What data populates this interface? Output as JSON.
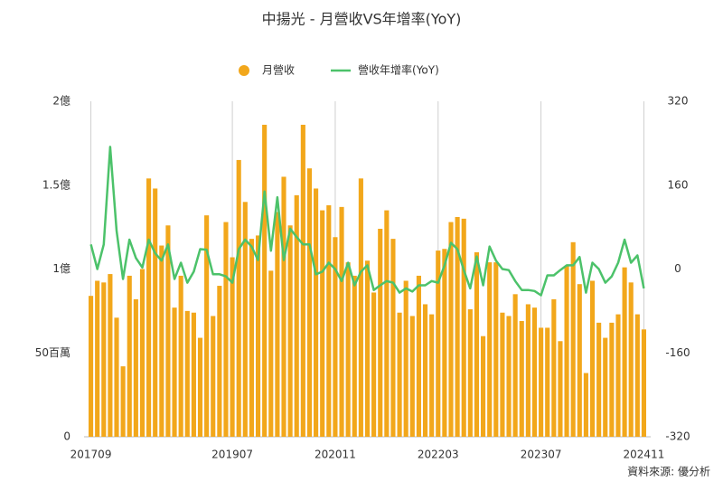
{
  "chart_data": {
    "type": "bar",
    "title": "中揚光 - 月營收VS年增率(YoY)",
    "source": "資料來源: 優分析",
    "categories": [
      "201709",
      null,
      null,
      null,
      null,
      null,
      null,
      null,
      null,
      null,
      null,
      null,
      null,
      null,
      null,
      null,
      null,
      null,
      null,
      null,
      null,
      null,
      "201907",
      null,
      null,
      null,
      null,
      null,
      null,
      null,
      null,
      null,
      null,
      null,
      null,
      null,
      null,
      null,
      "202011",
      null,
      null,
      null,
      null,
      null,
      null,
      null,
      null,
      null,
      null,
      null,
      null,
      null,
      null,
      null,
      "202203",
      null,
      null,
      null,
      null,
      null,
      null,
      null,
      null,
      null,
      null,
      null,
      null,
      null,
      null,
      null,
      "202307",
      null,
      null,
      null,
      null,
      null,
      null,
      null,
      null,
      null,
      null,
      null,
      null,
      null,
      null,
      null,
      "202411"
    ],
    "series": [
      {
        "name": "月營收",
        "type": "bar",
        "color": "#f2a71b",
        "values": [
          0.84,
          0.93,
          0.92,
          0.97,
          0.71,
          0.42,
          0.96,
          0.82,
          1.0,
          1.54,
          1.48,
          1.14,
          1.26,
          0.77,
          0.96,
          0.75,
          0.74,
          0.59,
          1.32,
          0.72,
          0.9,
          1.28,
          1.07,
          1.65,
          1.4,
          1.18,
          1.2,
          1.86,
          0.99,
          1.34,
          1.55,
          1.26,
          1.44,
          1.86,
          1.6,
          1.48,
          1.35,
          1.38,
          1.19,
          1.37,
          1.04,
          0.96,
          1.54,
          1.05,
          0.86,
          1.24,
          1.35,
          1.18,
          0.74,
          0.93,
          0.72,
          0.96,
          0.79,
          0.73,
          1.11,
          1.12,
          1.28,
          1.31,
          1.3,
          0.76,
          1.1,
          0.6,
          1.04,
          1.04,
          0.74,
          0.72,
          0.85,
          0.69,
          0.79,
          0.77,
          0.65,
          0.65,
          0.82,
          0.57,
          1.02,
          1.16,
          0.91,
          0.38,
          0.93,
          0.68,
          0.59,
          0.68,
          0.73,
          1.01,
          0.92,
          0.73,
          0.64
        ]
      },
      {
        "name": "營收年增率(YoY)",
        "type": "line",
        "color": "#4cc26a",
        "axis": "y2",
        "values": [
          47,
          0,
          47,
          233,
          73,
          -19,
          56,
          21,
          3,
          56,
          30,
          16,
          47,
          -19,
          12,
          -26,
          -5,
          38,
          37,
          -10,
          -10,
          -14,
          -26,
          38,
          56,
          43,
          17,
          148,
          35,
          137,
          17,
          77,
          61,
          47,
          47,
          -10,
          -5,
          12,
          0,
          -23,
          12,
          -31,
          -5,
          7,
          -40,
          -31,
          -23,
          -26,
          -45,
          -37,
          -43,
          -31,
          -31,
          -23,
          -26,
          7,
          50,
          38,
          -2,
          -37,
          24,
          -31,
          43,
          16,
          0,
          -2,
          -23,
          -40,
          -40,
          -42,
          -50,
          -12,
          -12,
          -2,
          7,
          7,
          23,
          -45,
          12,
          0,
          -26,
          -14,
          12,
          56,
          12,
          26,
          -37
        ]
      }
    ],
    "ylim": [
      0,
      2
    ],
    "yticks": [
      0,
      {
        "value": 0.5,
        "label": "50百萬"
      },
      {
        "value": 1,
        "label": "1億"
      },
      {
        "value": 1.5,
        "label": "1.5億"
      },
      {
        "value": 2,
        "label": "2億"
      }
    ],
    "y2lim": [
      -320,
      320
    ],
    "y2ticks": [
      -320,
      -160,
      0,
      160,
      320
    ],
    "grid": true
  }
}
